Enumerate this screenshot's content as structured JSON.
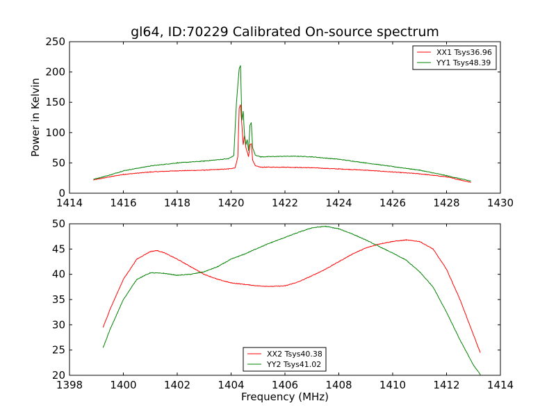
{
  "title": "gl64, ID:70229 Calibrated On-source spectrum",
  "chart_data": [
    {
      "type": "line",
      "ylabel": "Power in Kelvin",
      "xlabel": "",
      "xlim": [
        1414,
        1430
      ],
      "ylim": [
        0,
        250
      ],
      "xticks": [
        1414,
        1416,
        1418,
        1420,
        1422,
        1424,
        1426,
        1428,
        1430
      ],
      "yticks": [
        0,
        50,
        100,
        150,
        200,
        250
      ],
      "legend_position": "top-right",
      "series": [
        {
          "name": "XX1 Tsys36.96",
          "color": "#ff0000",
          "x": [
            1414.9,
            1415.5,
            1416,
            1417,
            1418,
            1419,
            1419.9,
            1420.15,
            1420.25,
            1420.3,
            1420.35,
            1420.45,
            1420.5,
            1420.55,
            1420.6,
            1420.65,
            1420.7,
            1420.75,
            1420.8,
            1420.9,
            1421.1,
            1422,
            1423,
            1424,
            1425,
            1426,
            1427,
            1428,
            1428.9
          ],
          "y": [
            22,
            27,
            31,
            35,
            37,
            38,
            40,
            42,
            60,
            140,
            146,
            80,
            95,
            75,
            68,
            60,
            80,
            82,
            55,
            45,
            43,
            43,
            42,
            40,
            38,
            35,
            32,
            27,
            18
          ]
        },
        {
          "name": "YY1 Tsys48.39",
          "color": "#008000",
          "x": [
            1414.9,
            1415.5,
            1416,
            1417,
            1418,
            1419,
            1419.9,
            1420.1,
            1420.2,
            1420.3,
            1420.35,
            1420.4,
            1420.45,
            1420.5,
            1420.55,
            1420.6,
            1420.65,
            1420.7,
            1420.75,
            1420.8,
            1420.9,
            1421.1,
            1422,
            1422.5,
            1423,
            1424,
            1425,
            1426,
            1427,
            1428,
            1428.9
          ],
          "y": [
            23,
            30,
            37,
            45,
            50,
            53,
            57,
            62,
            150,
            205,
            211,
            120,
            135,
            95,
            80,
            88,
            70,
            112,
            117,
            75,
            63,
            60,
            61,
            61,
            60,
            56,
            50,
            44,
            38,
            29,
            20
          ]
        }
      ]
    },
    {
      "type": "line",
      "xlabel": "Frequency (MHz)",
      "ylabel": "",
      "xlim": [
        1398,
        1414
      ],
      "ylim": [
        20,
        50
      ],
      "xticks": [
        1398,
        1400,
        1402,
        1404,
        1406,
        1408,
        1410,
        1412,
        1414
      ],
      "yticks": [
        20,
        25,
        30,
        35,
        40,
        45,
        50
      ],
      "legend_position": "lower-center",
      "series": [
        {
          "name": "XX2 Tsys40.38",
          "color": "#ff0000",
          "x": [
            1399.25,
            1399.5,
            1400,
            1400.5,
            1401,
            1401.25,
            1401.5,
            1402,
            1402.5,
            1403,
            1403.5,
            1404,
            1404.5,
            1405,
            1405.5,
            1406,
            1406.5,
            1407,
            1407.5,
            1408,
            1408.5,
            1409,
            1409.5,
            1410,
            1410.5,
            1411,
            1411.5,
            1412,
            1412.5,
            1413,
            1413.25
          ],
          "y": [
            29.5,
            33,
            39,
            43,
            44.5,
            44.7,
            44.3,
            43,
            41.5,
            40,
            39,
            38.3,
            38,
            37.7,
            37.6,
            37.7,
            38.5,
            39.7,
            41,
            42.5,
            44,
            45.2,
            46,
            46.5,
            46.8,
            46.5,
            45,
            41,
            35,
            28,
            24.5
          ]
        },
        {
          "name": "YY2 Tsys41.02",
          "color": "#008000",
          "x": [
            1399.25,
            1399.5,
            1400,
            1400.5,
            1401,
            1401.5,
            1402,
            1402.5,
            1403,
            1403.5,
            1404,
            1404.5,
            1405,
            1405.5,
            1406,
            1406.5,
            1407,
            1407.5,
            1408,
            1408.5,
            1409,
            1409.5,
            1410,
            1410.5,
            1411,
            1411.5,
            1412,
            1412.5,
            1413,
            1413.25
          ],
          "y": [
            25.5,
            29,
            35,
            39,
            40.3,
            40.2,
            39.8,
            40,
            40.5,
            41.5,
            43,
            44,
            45.2,
            46.3,
            47.3,
            48.3,
            49.2,
            49.5,
            49,
            48,
            46.8,
            45.5,
            44.2,
            42.8,
            40.5,
            37.5,
            32.5,
            27,
            22,
            20.2
          ]
        }
      ]
    }
  ]
}
